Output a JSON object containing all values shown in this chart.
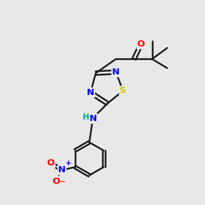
{
  "background_color": "#e8e8e8",
  "bond_color": "#1a1a1a",
  "atom_colors": {
    "N": "#0000ff",
    "S": "#cccc00",
    "O": "#ff0000",
    "C": "#1a1a1a",
    "H": "#00aa88"
  },
  "figsize": [
    3.0,
    3.0
  ],
  "dpi": 100,
  "xlim": [
    0,
    10
  ],
  "ylim": [
    0,
    10
  ]
}
